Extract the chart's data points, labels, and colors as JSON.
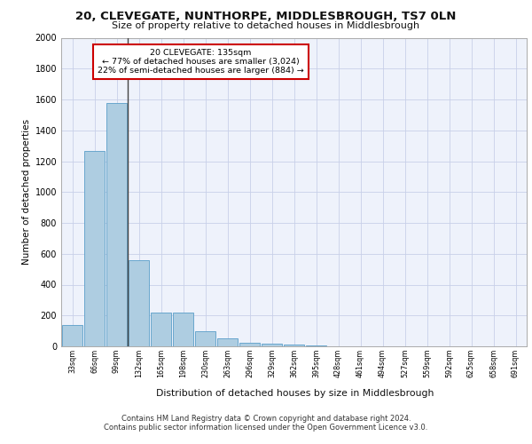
{
  "title1": "20, CLEVEGATE, NUNTHORPE, MIDDLESBROUGH, TS7 0LN",
  "title2": "Size of property relative to detached houses in Middlesbrough",
  "xlabel": "Distribution of detached houses by size in Middlesbrough",
  "ylabel": "Number of detached properties",
  "footnote1": "Contains HM Land Registry data © Crown copyright and database right 2024.",
  "footnote2": "Contains public sector information licensed under the Open Government Licence v3.0.",
  "annotation_title": "20 CLEVEGATE: 135sqm",
  "annotation_line1": "← 77% of detached houses are smaller (3,024)",
  "annotation_line2": "22% of semi-detached houses are larger (884) →",
  "bar_color": "#aecde1",
  "bar_edge_color": "#5a9ec9",
  "vline_color": "#444444",
  "annotation_box_edgecolor": "#cc0000",
  "background_color": "#ffffff",
  "plot_bg_color": "#eef2fb",
  "grid_color": "#c8d0e8",
  "categories": [
    "33sqm",
    "66sqm",
    "99sqm",
    "132sqm",
    "165sqm",
    "198sqm",
    "230sqm",
    "263sqm",
    "296sqm",
    "329sqm",
    "362sqm",
    "395sqm",
    "428sqm",
    "461sqm",
    "494sqm",
    "527sqm",
    "559sqm",
    "592sqm",
    "625sqm",
    "658sqm",
    "691sqm"
  ],
  "values": [
    140,
    1265,
    1575,
    560,
    220,
    220,
    95,
    50,
    25,
    15,
    10,
    5,
    0,
    0,
    0,
    0,
    0,
    0,
    0,
    0,
    0
  ],
  "ylim": [
    0,
    2000
  ],
  "yticks": [
    0,
    200,
    400,
    600,
    800,
    1000,
    1200,
    1400,
    1600,
    1800,
    2000
  ],
  "vline_bin_index": 3
}
